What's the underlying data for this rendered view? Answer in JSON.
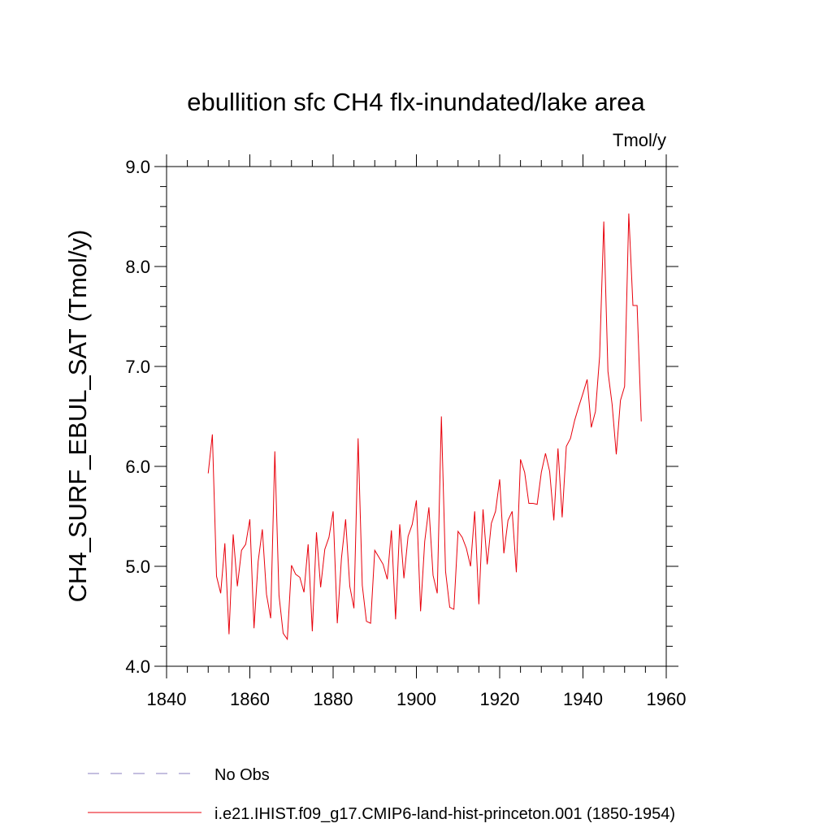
{
  "chart_data": {
    "type": "line",
    "title": "ebullition sfc CH4 flx-inundated/lake area",
    "units_label": "Tmol/y",
    "xlabel": "",
    "ylabel": "CH4_SURF_EBUL_SAT  (Tmol/y)",
    "xlim": [
      1840,
      1960
    ],
    "ylim": [
      4.0,
      9.0
    ],
    "xticks": [
      1840,
      1860,
      1880,
      1900,
      1920,
      1940,
      1960
    ],
    "xtick_labels": [
      "1840",
      "1860",
      "1880",
      "1900",
      "1920",
      "1940",
      "1960"
    ],
    "yticks": [
      4.0,
      5.0,
      6.0,
      7.0,
      8.0,
      9.0
    ],
    "ytick_labels": [
      "4.0",
      "5.0",
      "6.0",
      "7.0",
      "8.0",
      "9.0"
    ],
    "grid": false,
    "legend_placement": "bottom-left, outside plot",
    "series": [
      {
        "name": "No Obs",
        "style": "dashed",
        "color": "#8a7fbf",
        "x": [],
        "y": []
      },
      {
        "name": "i.e21.IHIST.f09_g17.CMIP6-land-hist-princeton.001 (1850-1954)",
        "style": "solid",
        "color": "#e8000b",
        "x": [
          1850,
          1851,
          1852,
          1853,
          1854,
          1855,
          1856,
          1857,
          1858,
          1859,
          1860,
          1861,
          1862,
          1863,
          1864,
          1865,
          1866,
          1867,
          1868,
          1869,
          1870,
          1871,
          1872,
          1873,
          1874,
          1875,
          1876,
          1877,
          1878,
          1879,
          1880,
          1881,
          1882,
          1883,
          1884,
          1885,
          1886,
          1887,
          1888,
          1889,
          1890,
          1891,
          1892,
          1893,
          1894,
          1895,
          1896,
          1897,
          1898,
          1899,
          1900,
          1901,
          1902,
          1903,
          1904,
          1905,
          1906,
          1907,
          1908,
          1909,
          1910,
          1911,
          1912,
          1913,
          1914,
          1915,
          1916,
          1917,
          1918,
          1919,
          1920,
          1921,
          1922,
          1923,
          1924,
          1925,
          1926,
          1927,
          1928,
          1929,
          1930,
          1931,
          1932,
          1933,
          1934,
          1935,
          1936,
          1937,
          1938,
          1939,
          1940,
          1941,
          1942,
          1943,
          1944,
          1945,
          1946,
          1947,
          1948,
          1949,
          1950,
          1951,
          1952,
          1953,
          1954
        ],
        "y": [
          5.93,
          6.32,
          4.9,
          4.73,
          5.23,
          4.32,
          5.32,
          4.8,
          5.16,
          5.22,
          5.47,
          4.38,
          5.05,
          5.37,
          4.72,
          4.48,
          6.15,
          4.71,
          4.33,
          4.27,
          5.01,
          4.92,
          4.89,
          4.74,
          5.22,
          4.35,
          5.34,
          4.79,
          5.17,
          5.29,
          5.55,
          4.43,
          5.08,
          5.47,
          4.8,
          4.58,
          6.28,
          4.81,
          4.45,
          4.43,
          5.16,
          5.09,
          5.02,
          4.87,
          5.36,
          4.47,
          5.42,
          4.88,
          5.3,
          5.42,
          5.66,
          4.55,
          5.25,
          5.59,
          4.91,
          4.73,
          6.5,
          4.95,
          4.59,
          4.57,
          5.35,
          5.29,
          5.18,
          5.0,
          5.55,
          4.62,
          5.57,
          5.02,
          5.43,
          5.55,
          5.87,
          5.13,
          5.46,
          5.55,
          4.94,
          6.07,
          5.94,
          5.63,
          5.63,
          5.62,
          5.94,
          6.13,
          5.95,
          5.46,
          6.18,
          5.49,
          6.2,
          6.28,
          6.46,
          6.6,
          6.73,
          6.87,
          6.39,
          6.55,
          7.1,
          8.45,
          6.95,
          6.62,
          6.12,
          6.66,
          6.8,
          8.53,
          7.61,
          7.61,
          6.45
        ]
      }
    ]
  }
}
